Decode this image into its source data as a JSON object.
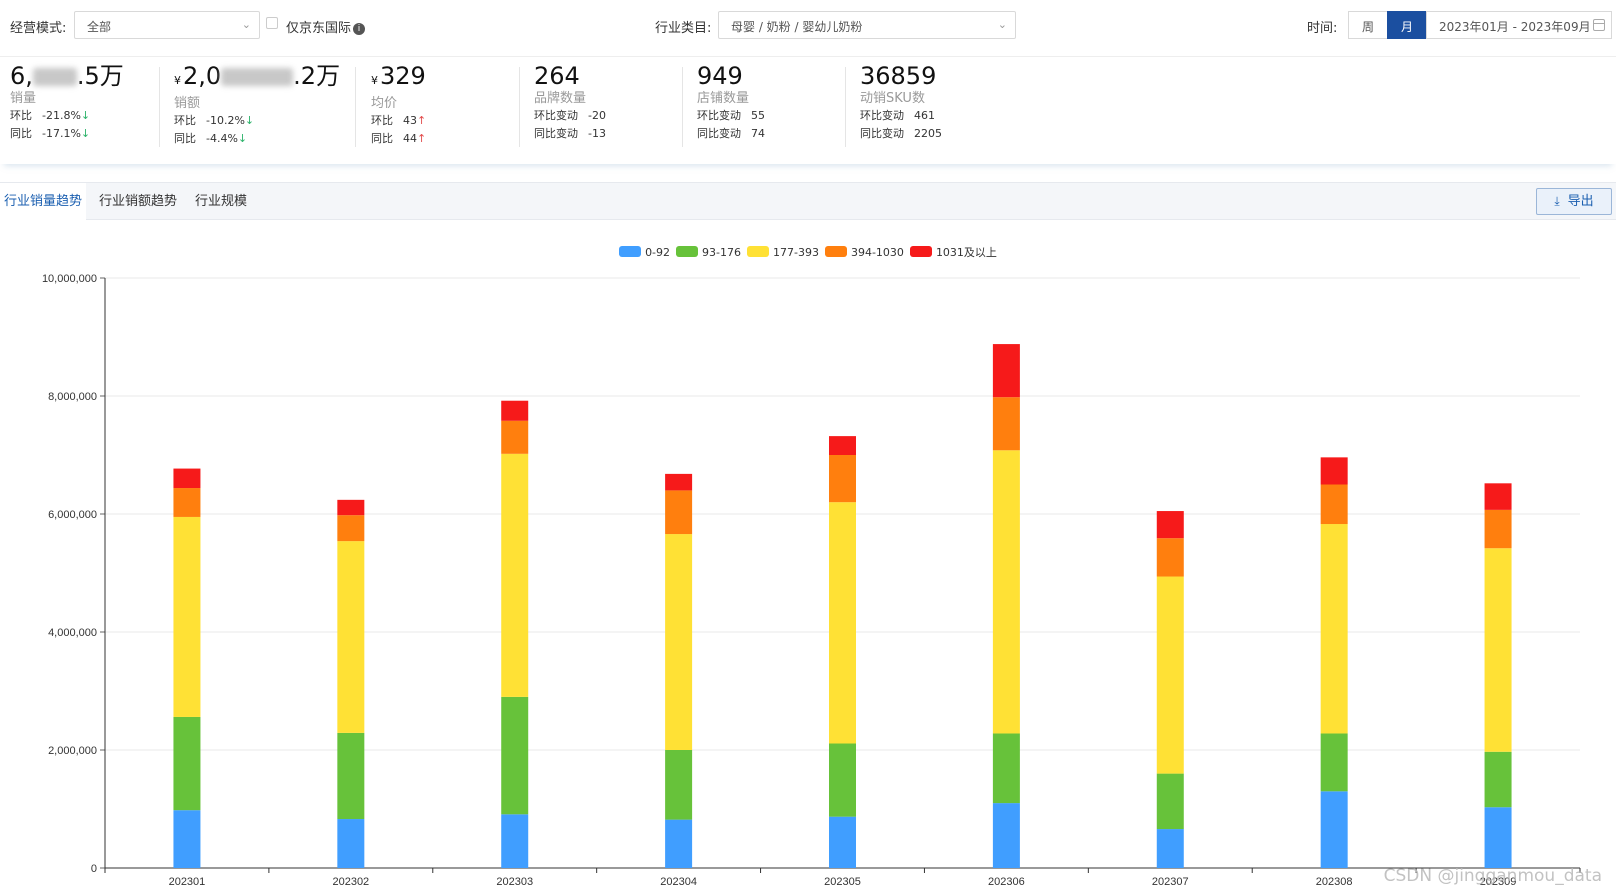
{
  "filters": {
    "mode_label": "经营模式:",
    "mode_value": "全部",
    "jd_intl_label": "仅京东国际",
    "category_label": "行业类目:",
    "category_value": "母婴 / 奶粉 / 婴幼儿奶粉",
    "time_label": "时间:",
    "week_label": "周",
    "month_label": "月",
    "date_range": "2023年01月 - 2023年09月"
  },
  "stats": [
    {
      "value_prefix": "6,",
      "value_suffix": ".5万",
      "name": "销量",
      "r1_label": "环比",
      "r1_value": "-21.8%",
      "r1_dir": "↓",
      "r2_label": "同比",
      "r2_value": "-17.1%",
      "r2_dir": "↓"
    },
    {
      "currency": "¥",
      "value_prefix": "2,0",
      "value_suffix": ".2万",
      "name": "销额",
      "r1_label": "环比",
      "r1_value": "-10.2%",
      "r1_dir": "↓",
      "r2_label": "同比",
      "r2_value": "-4.4%",
      "r2_dir": "↓"
    },
    {
      "currency": "¥",
      "value": "329",
      "name": "均价",
      "r1_label": "环比",
      "r1_value": "43",
      "r1_dir": "↑",
      "r2_label": "同比",
      "r2_value": "44",
      "r2_dir": "↑"
    },
    {
      "value": "264",
      "name": "品牌数量",
      "r1_label": "环比变动",
      "r1_value": "-20",
      "r2_label": "同比变动",
      "r2_value": "-13"
    },
    {
      "value": "949",
      "name": "店铺数量",
      "r1_label": "环比变动",
      "r1_value": "55",
      "r2_label": "同比变动",
      "r2_value": "74"
    },
    {
      "value": "36859",
      "name": "动销SKU数",
      "r1_label": "环比变动",
      "r1_value": "461",
      "r2_label": "同比变动",
      "r2_value": "2205"
    }
  ],
  "tabs": {
    "sales_volume": "行业销量趋势",
    "sales_amount": "行业销额趋势",
    "scale": "行业规模",
    "export": "导出"
  },
  "watermark": "CSDN @jingganmou_data",
  "chart_data": {
    "type": "bar",
    "stacked": true,
    "categories": [
      "202301",
      "202302",
      "202303",
      "202304",
      "202305",
      "202306",
      "202307",
      "202308",
      "202309"
    ],
    "ylim": [
      0,
      10000000
    ],
    "yticks": [
      0,
      2000000,
      4000000,
      6000000,
      8000000,
      10000000
    ],
    "ytick_labels": [
      "0",
      "2,000,000",
      "4,000,000",
      "6,000,000",
      "8,000,000",
      "10,000,000"
    ],
    "legend_position": "top-center",
    "series": [
      {
        "name": "0-92",
        "color": "#409eff",
        "values": [
          980000,
          830000,
          910000,
          820000,
          870000,
          1100000,
          660000,
          1300000,
          1030000
        ]
      },
      {
        "name": "93-176",
        "color": "#67c23a",
        "values": [
          1580000,
          1460000,
          1990000,
          1180000,
          1240000,
          1180000,
          940000,
          980000,
          940000
        ]
      },
      {
        "name": "177-393",
        "color": "#ffe135",
        "values": [
          3390000,
          3250000,
          4120000,
          3660000,
          4090000,
          4800000,
          3340000,
          3550000,
          3450000
        ]
      },
      {
        "name": "394-1030",
        "color": "#ff7f0e",
        "values": [
          490000,
          440000,
          560000,
          740000,
          800000,
          900000,
          650000,
          670000,
          650000
        ]
      },
      {
        "name": "1031及以上",
        "color": "#f61a1a",
        "values": [
          330000,
          260000,
          340000,
          280000,
          320000,
          900000,
          460000,
          460000,
          450000
        ]
      }
    ]
  }
}
